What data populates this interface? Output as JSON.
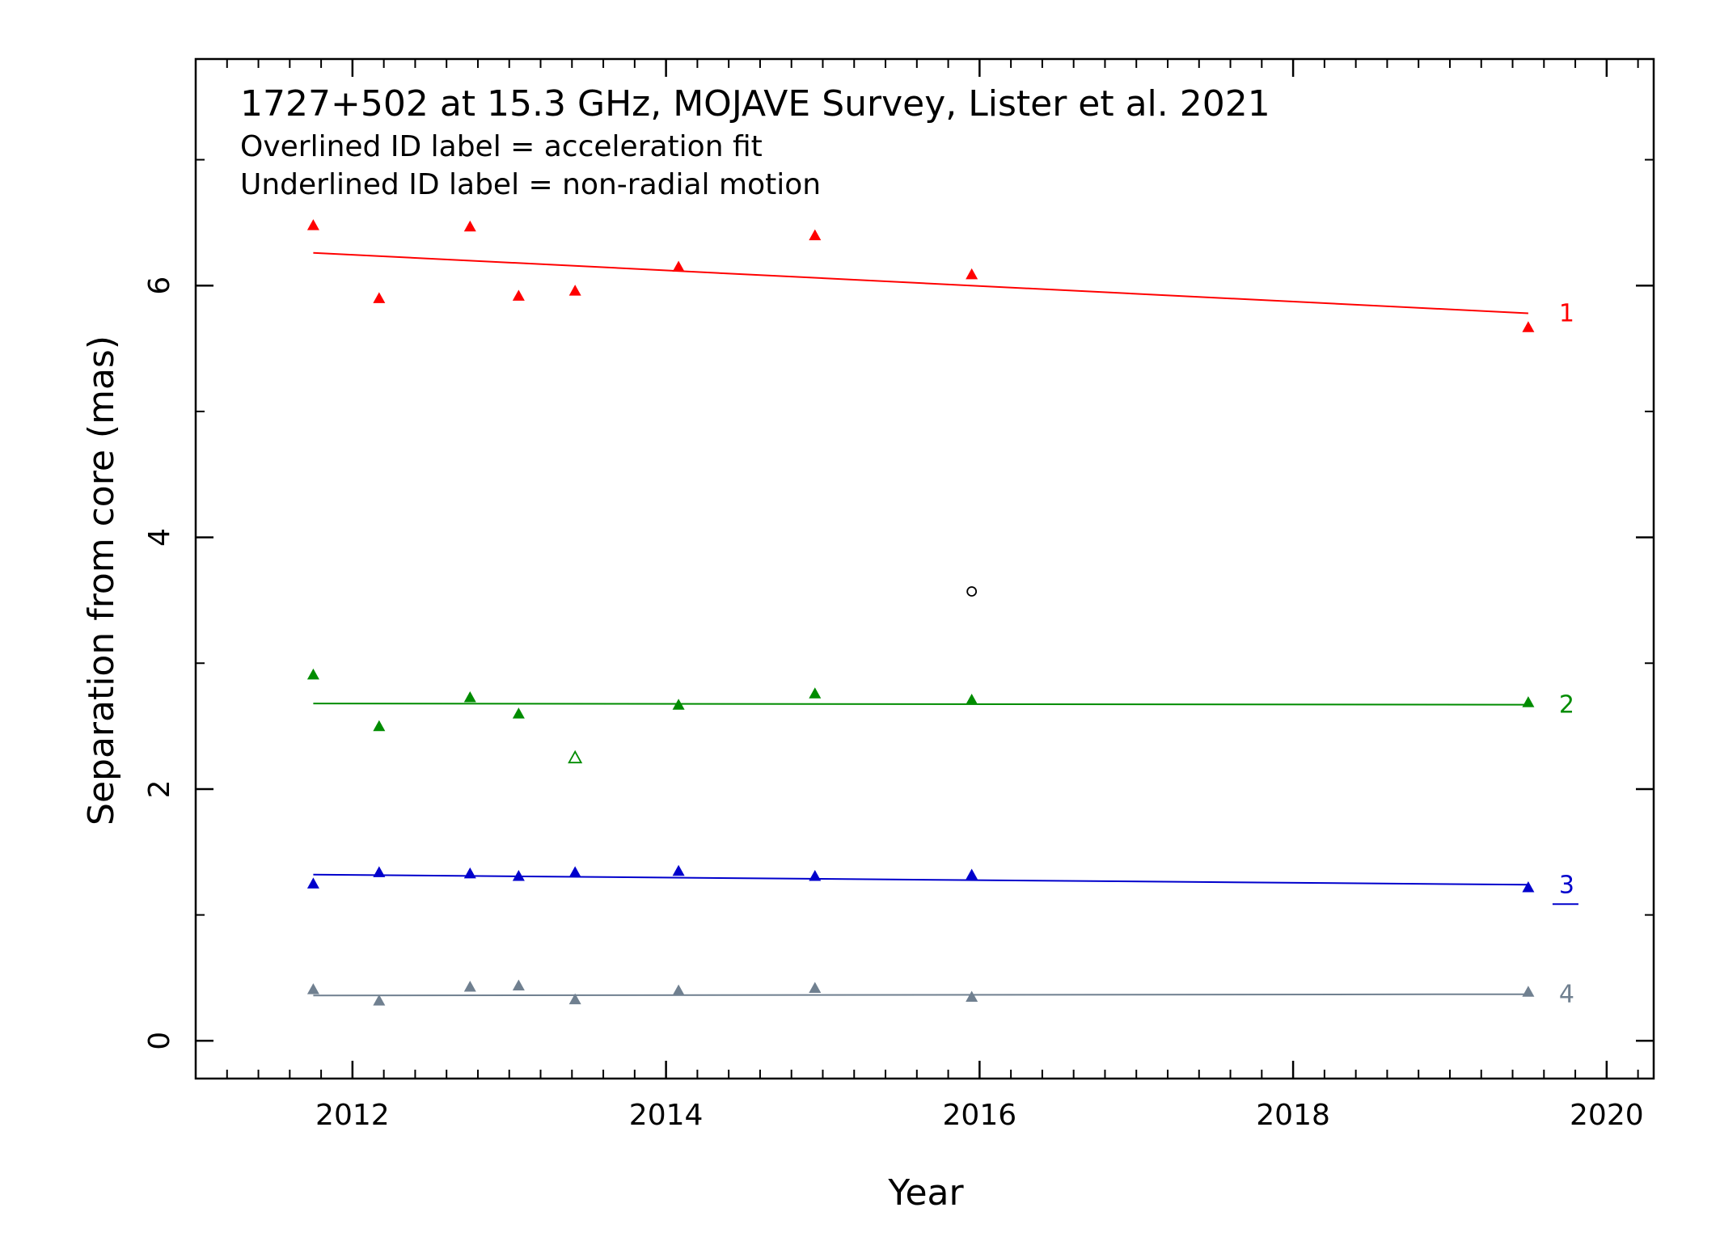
{
  "chart_data": {
    "type": "scatter",
    "title": "1727+502 at 15.3 GHz, MOJAVE Survey, Lister et al. 2021",
    "subtitle_lines": [
      "Overlined ID label = acceleration fit",
      "Underlined ID label = non-radial motion"
    ],
    "xlabel": "Year",
    "ylabel": "Separation from core (mas)",
    "xlim": [
      2011.0,
      2020.3
    ],
    "ylim": [
      -0.3,
      7.8
    ],
    "xticks": [
      2012,
      2014,
      2016,
      2018,
      2020
    ],
    "yticks": [
      0,
      2,
      4,
      6
    ],
    "grid": false,
    "series": [
      {
        "name": "1",
        "color": "#ff0000",
        "marker": "filled-triangle",
        "label_style": "plain",
        "points": [
          [
            2011.75,
            6.47
          ],
          [
            2012.17,
            5.89
          ],
          [
            2012.75,
            6.46
          ],
          [
            2013.06,
            5.91
          ],
          [
            2013.42,
            5.95
          ],
          [
            2014.08,
            6.14
          ],
          [
            2014.95,
            6.39
          ],
          [
            2015.95,
            6.08
          ],
          [
            2019.5,
            5.66
          ]
        ],
        "fit": [
          [
            2011.75,
            6.26
          ],
          [
            2019.5,
            5.78
          ]
        ]
      },
      {
        "name": "2",
        "color": "#008c00",
        "marker": "filled-triangle",
        "label_style": "plain",
        "points": [
          [
            2011.75,
            2.9
          ],
          [
            2012.17,
            2.49
          ],
          [
            2012.75,
            2.72
          ],
          [
            2013.06,
            2.59
          ],
          [
            2014.08,
            2.66
          ],
          [
            2014.95,
            2.75
          ],
          [
            2015.95,
            2.7
          ],
          [
            2019.5,
            2.68
          ]
        ],
        "open_points": [
          [
            2013.42,
            2.24
          ]
        ],
        "fit": [
          [
            2011.75,
            2.68
          ],
          [
            2019.5,
            2.67
          ]
        ]
      },
      {
        "name": "3",
        "color": "#0000cc",
        "marker": "filled-triangle",
        "label_style": "underlined",
        "points": [
          [
            2011.75,
            1.24
          ],
          [
            2012.17,
            1.33
          ],
          [
            2012.75,
            1.32
          ],
          [
            2013.06,
            1.3
          ],
          [
            2013.42,
            1.33
          ],
          [
            2014.08,
            1.34
          ],
          [
            2014.95,
            1.3
          ],
          [
            2015.95,
            1.31
          ],
          [
            2019.5,
            1.21
          ]
        ],
        "fit": [
          [
            2011.75,
            1.32
          ],
          [
            2019.5,
            1.24
          ]
        ]
      },
      {
        "name": "4",
        "color": "#708090",
        "marker": "filled-triangle",
        "label_style": "plain",
        "points": [
          [
            2011.75,
            0.4
          ],
          [
            2012.17,
            0.31
          ],
          [
            2012.75,
            0.42
          ],
          [
            2013.06,
            0.43
          ],
          [
            2013.42,
            0.32
          ],
          [
            2014.08,
            0.39
          ],
          [
            2014.95,
            0.41
          ],
          [
            2015.95,
            0.34
          ],
          [
            2019.5,
            0.38
          ]
        ],
        "fit": [
          [
            2011.75,
            0.36
          ],
          [
            2019.5,
            0.37
          ]
        ]
      }
    ],
    "unassociated_points": [
      {
        "x": 2015.95,
        "y": 3.57,
        "color": "#000000",
        "marker": "open-circle"
      }
    ]
  }
}
